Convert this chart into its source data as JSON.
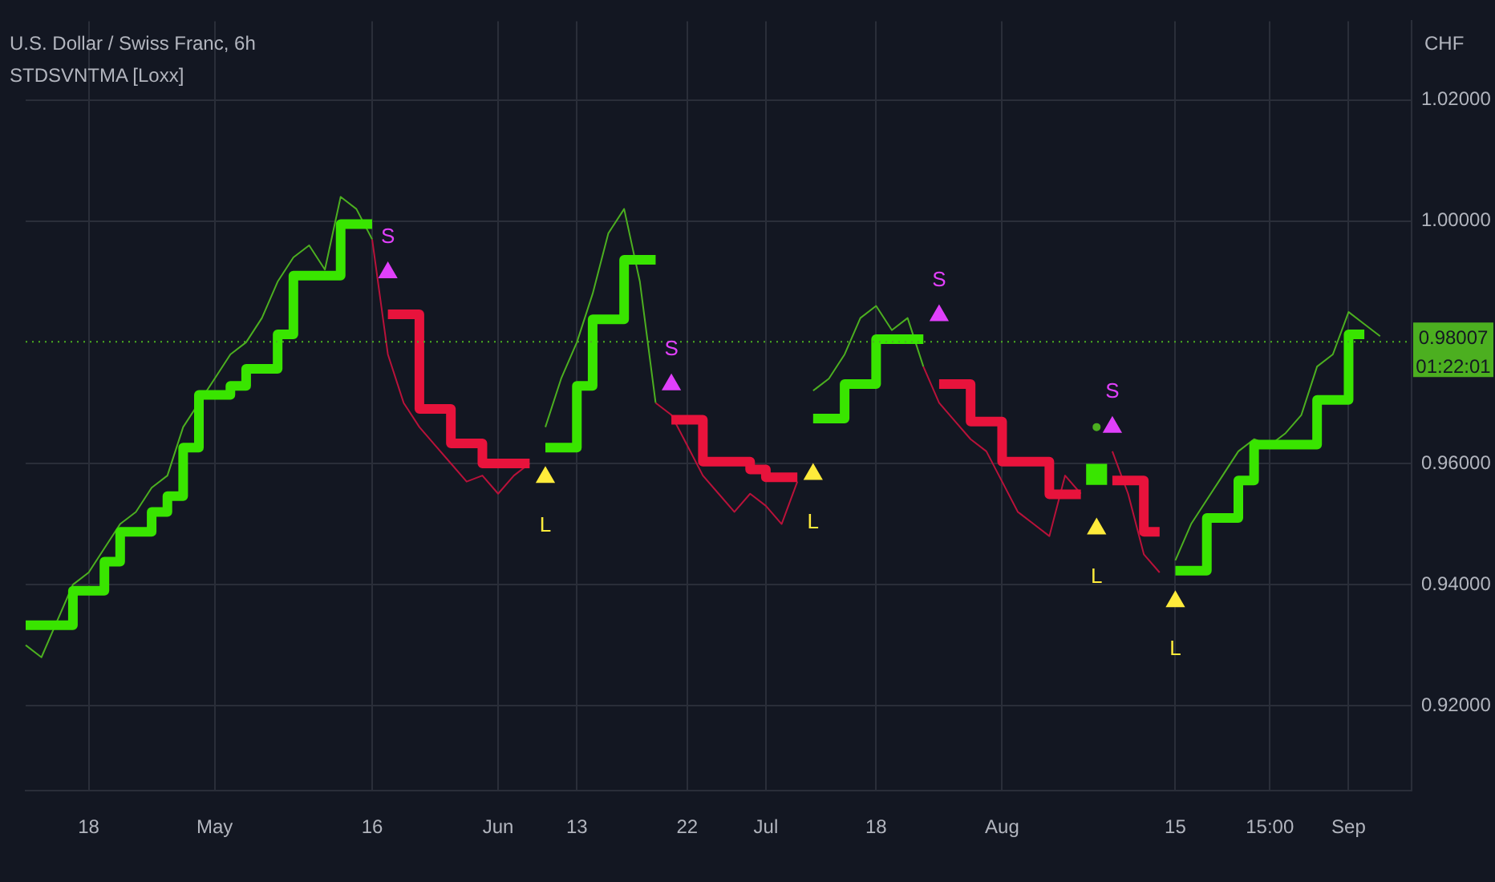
{
  "chart_data": {
    "type": "line",
    "title": "U.S. Dollar / Swiss Franc, 6h",
    "subtitle": "STDSVNTMA [Loxx]",
    "ylabel": "CHF",
    "categories": [
      null,
      null,
      null,
      null,
      "18",
      null,
      null,
      null,
      null,
      null,
      null,
      null,
      "May",
      null,
      null,
      null,
      null,
      null,
      null,
      null,
      null,
      null,
      "16",
      null,
      null,
      null,
      null,
      null,
      null,
      null,
      "Jun",
      null,
      null,
      null,
      null,
      "13",
      null,
      null,
      null,
      null,
      null,
      null,
      "22",
      null,
      null,
      null,
      null,
      "Jul",
      null,
      null,
      null,
      null,
      null,
      null,
      "18",
      null,
      null,
      null,
      null,
      null,
      null,
      null,
      "Aug",
      null,
      null,
      null,
      null,
      null,
      null,
      null,
      null,
      null,
      null,
      "15",
      null,
      null,
      null,
      null,
      null,
      "15:00",
      null,
      null,
      null,
      null,
      "Sep",
      null,
      null,
      null,
      null
    ],
    "series": [
      {
        "color": "#4caf20",
        "values": [
          0.93,
          0.928,
          0.934,
          0.94,
          0.942,
          0.946,
          0.95,
          0.952,
          0.956,
          0.958,
          0.966,
          0.97,
          0.974,
          0.978,
          0.98,
          0.984,
          0.99,
          0.994,
          0.996,
          0.992,
          1.004,
          1.002,
          0.997,
          null,
          null,
          null,
          null,
          null,
          null,
          null,
          null,
          null,
          null,
          0.966,
          0.974,
          0.98,
          0.988,
          0.998,
          1.002,
          0.99,
          0.97,
          null,
          null,
          null,
          null,
          null,
          null,
          null,
          null,
          null,
          0.972,
          0.974,
          0.978,
          0.984,
          0.986,
          0.982,
          0.984,
          0.976,
          null,
          null,
          null,
          null,
          null,
          null,
          null,
          null,
          null,
          null,
          0.966,
          null,
          null,
          null,
          null,
          0.944,
          0.95,
          0.954,
          0.958,
          0.962,
          0.964,
          0.963,
          0.965,
          0.968,
          0.976,
          0.978,
          0.985,
          0.983,
          0.981,
          null,
          null
        ]
      },
      {
        "color": "#b8123a",
        "values": [
          null,
          null,
          null,
          null,
          null,
          null,
          null,
          null,
          null,
          null,
          null,
          null,
          null,
          null,
          null,
          null,
          null,
          null,
          null,
          null,
          null,
          null,
          0.997,
          0.978,
          0.97,
          0.966,
          0.963,
          0.96,
          0.957,
          0.958,
          0.955,
          0.958,
          0.96,
          null,
          null,
          null,
          null,
          null,
          null,
          null,
          0.97,
          0.968,
          0.963,
          0.958,
          0.955,
          0.952,
          0.955,
          0.953,
          0.95,
          0.957,
          null,
          null,
          null,
          null,
          null,
          null,
          null,
          0.976,
          0.97,
          0.967,
          0.964,
          0.962,
          0.957,
          0.952,
          0.95,
          0.948,
          0.958,
          0.955,
          null,
          0.962,
          0.955,
          0.945,
          0.942,
          null,
          null,
          null,
          null,
          null,
          null,
          null,
          null,
          null,
          null,
          null,
          null,
          null,
          null,
          null,
          null
        ]
      },
      {
        "type": "step",
        "color": "#39e500",
        "line_style": "solid",
        "values": [
          0.9333,
          0.9333,
          0.9333,
          0.939,
          0.939,
          0.9438,
          0.9487,
          0.9487,
          0.952,
          0.9546,
          0.9626,
          0.9713,
          0.9713,
          0.9728,
          0.9756,
          0.9756,
          0.9813,
          0.991,
          0.991,
          0.991,
          0.9995,
          0.9995,
          0.9995,
          null,
          null,
          null,
          null,
          null,
          null,
          null,
          null,
          null,
          null,
          0.9626,
          0.9626,
          0.9728,
          0.9838,
          0.9838,
          0.9936,
          0.9936,
          0.9936,
          null,
          null,
          null,
          null,
          null,
          null,
          null,
          null,
          null,
          0.9674,
          0.9674,
          0.9731,
          0.9731,
          0.9805,
          0.9805,
          0.9805,
          0.9805,
          null,
          null,
          null,
          null,
          null,
          null,
          null,
          null,
          null,
          null,
          0.9582,
          null,
          null,
          null,
          null,
          0.9423,
          0.9423,
          0.951,
          0.951,
          0.9572,
          0.9631,
          0.9631,
          0.9631,
          0.9631,
          0.9705,
          0.9705,
          0.9813,
          0.9813,
          null,
          null,
          null
        ]
      },
      {
        "type": "step",
        "color": "#e8133c",
        "line_style": "solid",
        "values": [
          null,
          null,
          null,
          null,
          null,
          null,
          null,
          null,
          null,
          null,
          null,
          null,
          null,
          null,
          null,
          null,
          null,
          null,
          null,
          null,
          null,
          null,
          null,
          0.9846,
          0.9846,
          0.969,
          0.969,
          0.9633,
          0.9633,
          0.96,
          0.96,
          0.96,
          0.96,
          null,
          null,
          null,
          null,
          null,
          null,
          null,
          null,
          0.9672,
          0.9672,
          0.9603,
          0.9603,
          0.9603,
          0.959,
          0.9577,
          0.9577,
          0.9577,
          null,
          null,
          null,
          null,
          null,
          null,
          null,
          null,
          0.9731,
          0.9731,
          0.9669,
          0.9669,
          0.9603,
          0.9603,
          0.9603,
          0.9549,
          0.9549,
          0.9549,
          null,
          0.9572,
          0.9572,
          0.9487,
          0.9487,
          null,
          null,
          null,
          null,
          null,
          null,
          null,
          null,
          null,
          null,
          null,
          null,
          null,
          null,
          null,
          null
        ]
      },
      {
        "type": "scatter",
        "name": "S",
        "color": "#e040fb",
        "marker": "triangle",
        "values": [
          null,
          null,
          null,
          null,
          null,
          null,
          null,
          null,
          null,
          null,
          null,
          null,
          null,
          null,
          null,
          null,
          null,
          null,
          null,
          null,
          null,
          null,
          null,
          0.9915,
          null,
          null,
          null,
          null,
          null,
          null,
          null,
          null,
          null,
          null,
          null,
          null,
          null,
          null,
          null,
          null,
          null,
          0.973,
          null,
          null,
          null,
          null,
          null,
          null,
          null,
          null,
          null,
          null,
          null,
          null,
          null,
          null,
          null,
          null,
          0.9844,
          null,
          null,
          null,
          null,
          null,
          null,
          null,
          null,
          null,
          null,
          0.966,
          null,
          null,
          null,
          null,
          null,
          null,
          null,
          null,
          null,
          null,
          null,
          null,
          null,
          null,
          null,
          null,
          null,
          null,
          null
        ]
      },
      {
        "type": "scatter",
        "name": "L",
        "color": "#ffeb3b",
        "marker": "triangle",
        "values": [
          null,
          null,
          null,
          null,
          null,
          null,
          null,
          null,
          null,
          null,
          null,
          null,
          null,
          null,
          null,
          null,
          null,
          null,
          null,
          null,
          null,
          null,
          null,
          null,
          null,
          null,
          null,
          null,
          null,
          null,
          null,
          null,
          null,
          0.9577,
          null,
          null,
          null,
          null,
          null,
          null,
          null,
          null,
          null,
          null,
          null,
          null,
          null,
          null,
          null,
          null,
          0.9582,
          null,
          null,
          null,
          null,
          null,
          null,
          null,
          null,
          null,
          null,
          null,
          null,
          null,
          null,
          null,
          null,
          null,
          0.9492,
          null,
          null,
          null,
          null,
          0.9372,
          null,
          null,
          null,
          null,
          null,
          null,
          null,
          null,
          null,
          null,
          null,
          null,
          null,
          null,
          null
        ]
      }
    ],
    "ylim": [
      0.906,
      1.033
    ],
    "yticks": [
      {
        "value": 0.92,
        "label": "0.92000"
      },
      {
        "value": 0.94,
        "label": "0.94000"
      },
      {
        "value": 0.96,
        "label": "0.96000"
      },
      {
        "value": 1.0,
        "label": "1.00000"
      },
      {
        "value": 1.02,
        "label": "1.02000"
      }
    ],
    "ref_lines": [
      {
        "axis": "y",
        "value": 0.98007,
        "label": "0.98007",
        "color": "#4caf20",
        "line_style": "dotted"
      }
    ],
    "annotations": [
      "01:22:01"
    ],
    "grid": true,
    "legend": false
  }
}
